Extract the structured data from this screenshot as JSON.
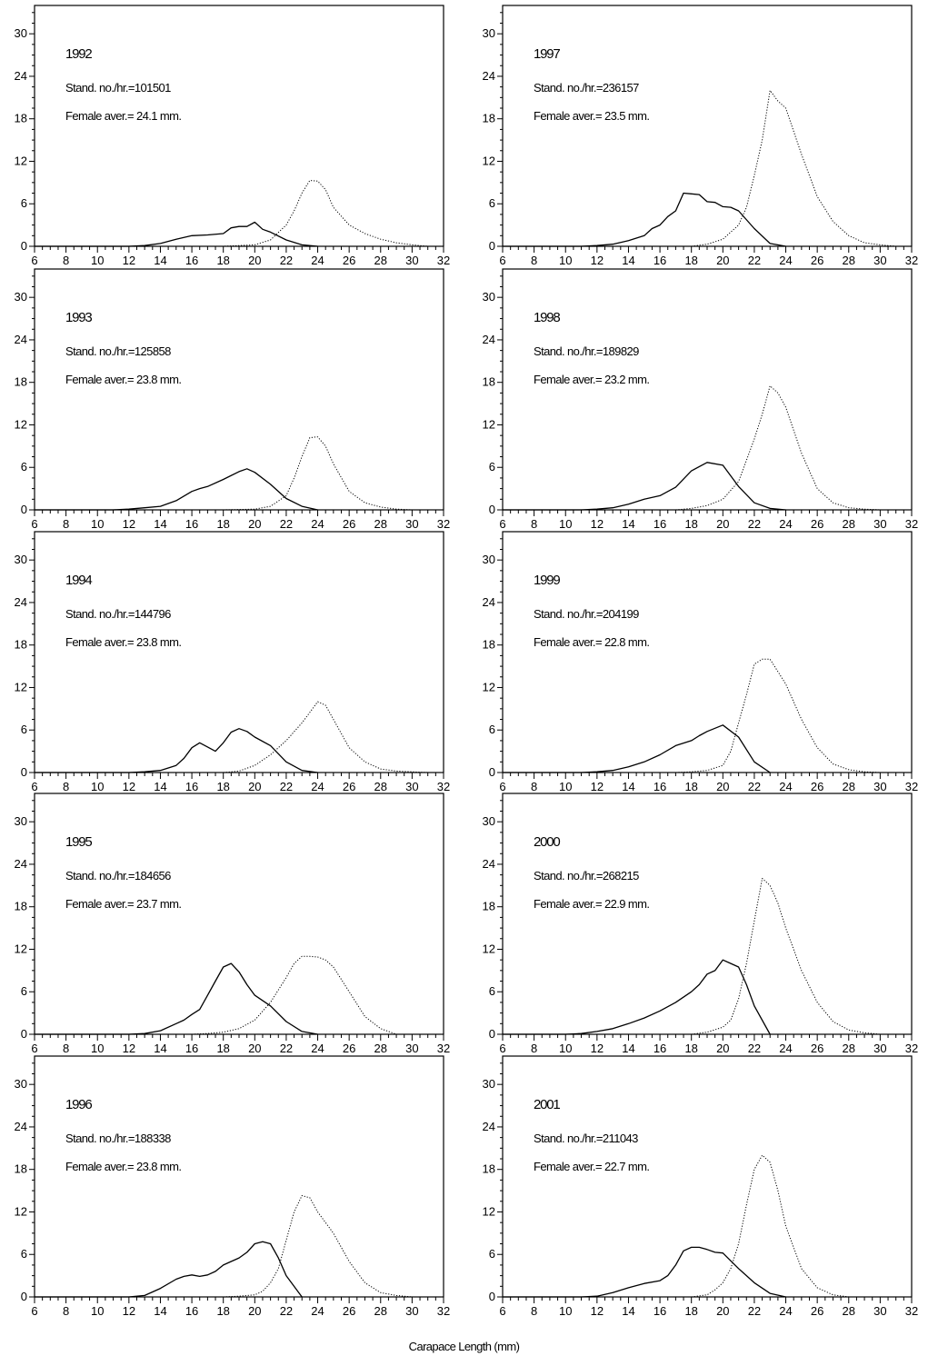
{
  "xlabel": "Carapace Length (mm)",
  "chart_data": {
    "type": "line",
    "xlim": [
      6,
      32
    ],
    "ylim": [
      0,
      34
    ],
    "x_ticks": [
      6,
      8,
      10,
      12,
      14,
      16,
      18,
      20,
      22,
      24,
      26,
      28,
      30,
      32
    ],
    "y_ticks": [
      0,
      6,
      12,
      18,
      24,
      30
    ],
    "grid": false,
    "panels": [
      {
        "year": "1992",
        "stand": "Stand. no./hr.=101501",
        "female": "Female aver.= 24.1 mm.",
        "series": [
          {
            "style": "solid",
            "x": [
              6,
              10,
              12,
              13,
              14,
              15,
              16,
              17,
              18,
              18.5,
              19,
              19.5,
              20,
              20.5,
              21,
              22,
              23,
              24
            ],
            "y": [
              0,
              0,
              0,
              0.1,
              0.4,
              1,
              1.5,
              1.6,
              1.8,
              2.6,
              2.8,
              2.8,
              3.4,
              2.4,
              2,
              0.9,
              0.2,
              0
            ]
          },
          {
            "style": "dotted",
            "x": [
              16,
              18,
              20,
              21,
              22,
              22.5,
              23,
              23.5,
              24,
              24.5,
              25,
              26,
              27,
              28,
              29,
              30,
              31
            ],
            "y": [
              0,
              0,
              0.2,
              0.9,
              3,
              5,
              7.5,
              9.3,
              9.2,
              8,
              5.5,
              3,
              1.8,
              1,
              0.5,
              0.2,
              0
            ]
          }
        ]
      },
      {
        "year": "1997",
        "stand": "Stand. no./hr.=236157",
        "female": "Female aver.= 23.5 mm.",
        "series": [
          {
            "style": "solid",
            "x": [
              6,
              11,
              12,
              13,
              14,
              15,
              15.5,
              16,
              16.5,
              17,
              17.5,
              18,
              18.5,
              19,
              19.5,
              20,
              20.5,
              21,
              22,
              23,
              24
            ],
            "y": [
              0,
              0,
              0.1,
              0.3,
              0.8,
              1.5,
              2.5,
              3,
              4.2,
              5,
              7.5,
              7.4,
              7.3,
              6.3,
              6.2,
              5.6,
              5.5,
              5,
              2.5,
              0.4,
              0
            ]
          },
          {
            "style": "dotted",
            "x": [
              18,
              19,
              20,
              21,
              21.5,
              22,
              22.5,
              23,
              23.5,
              24,
              25,
              26,
              27,
              28,
              29,
              30,
              31
            ],
            "y": [
              0,
              0.3,
              1,
              3,
              5.5,
              10,
              15,
              22,
              20.5,
              19.5,
              13,
              7,
              3.5,
              1.5,
              0.5,
              0.2,
              0
            ]
          }
        ]
      },
      {
        "year": "1993",
        "stand": "Stand. no./hr.=125858",
        "female": "Female aver.= 23.8 mm.",
        "series": [
          {
            "style": "solid",
            "x": [
              6,
              11,
              12,
              13,
              14,
              15,
              16,
              16.5,
              17,
              18,
              19,
              19.5,
              20,
              21,
              22,
              23,
              24
            ],
            "y": [
              0,
              0,
              0.1,
              0.3,
              0.5,
              1.3,
              2.6,
              3,
              3.3,
              4.3,
              5.4,
              5.8,
              5.3,
              3.6,
              1.6,
              0.5,
              0
            ]
          },
          {
            "style": "dotted",
            "x": [
              18,
              20,
              21,
              22,
              22.5,
              23,
              23.5,
              24,
              24.5,
              25,
              26,
              27,
              28,
              29,
              30
            ],
            "y": [
              0,
              0.1,
              0.5,
              2,
              4.5,
              7.5,
              10.2,
              10.3,
              9,
              6.5,
              2.6,
              1,
              0.4,
              0.1,
              0
            ]
          }
        ]
      },
      {
        "year": "1998",
        "stand": "Stand. no./hr.=189829",
        "female": "Female aver.= 23.2 mm.",
        "series": [
          {
            "style": "solid",
            "x": [
              6,
              11,
              12,
              13,
              14,
              15,
              16,
              17,
              18,
              19,
              20,
              21,
              22,
              23,
              24
            ],
            "y": [
              0,
              0,
              0.1,
              0.3,
              0.8,
              1.5,
              2,
              3.2,
              5.5,
              6.7,
              6.3,
              3.3,
              1,
              0.2,
              0
            ]
          },
          {
            "style": "dotted",
            "x": [
              17,
              18,
              19,
              20,
              21,
              22,
              22.5,
              23,
              23.5,
              24,
              25,
              26,
              27,
              28,
              29,
              30
            ],
            "y": [
              0,
              0.2,
              0.6,
              1.5,
              4,
              10,
              13.5,
              17.5,
              16.5,
              14.5,
              8,
              3,
              1,
              0.3,
              0.1,
              0
            ]
          }
        ]
      },
      {
        "year": "1994",
        "stand": "Stand. no./hr.=144796",
        "female": "Female aver.= 23.8 mm.",
        "series": [
          {
            "style": "solid",
            "x": [
              6,
              12,
              13,
              14,
              15,
              15.5,
              16,
              16.5,
              17,
              17.5,
              18,
              18.5,
              19,
              19.5,
              20,
              21,
              22,
              23,
              24
            ],
            "y": [
              0,
              0,
              0.1,
              0.3,
              1,
              2,
              3.5,
              4.2,
              3.6,
              3,
              4.2,
              5.7,
              6.2,
              5.8,
              5,
              3.8,
              1.5,
              0.3,
              0
            ]
          },
          {
            "style": "dotted",
            "x": [
              18,
              19,
              20,
              21,
              22,
              23,
              23.5,
              24,
              24.5,
              25,
              26,
              27,
              28,
              29,
              30,
              31
            ],
            "y": [
              0,
              0.2,
              1,
              2.5,
              4.5,
              7,
              8.5,
              10,
              9.5,
              7.5,
              3.5,
              1.5,
              0.5,
              0.2,
              0.1,
              0
            ]
          }
        ]
      },
      {
        "year": "1999",
        "stand": "Stand. no./hr.=204199",
        "female": "Female aver.= 22.8 mm.",
        "series": [
          {
            "style": "solid",
            "x": [
              6,
              11,
              12,
              13,
              14,
              15,
              16,
              17,
              18,
              18.5,
              19,
              20,
              21,
              22,
              23
            ],
            "y": [
              0,
              0,
              0.1,
              0.3,
              0.8,
              1.5,
              2.5,
              3.8,
              4.5,
              5.2,
              5.8,
              6.7,
              5,
              1.5,
              0
            ]
          },
          {
            "style": "dotted",
            "x": [
              17,
              18,
              19,
              20,
              20.5,
              21,
              21.5,
              22,
              22.5,
              23,
              24,
              25,
              26,
              27,
              28,
              29,
              30
            ],
            "y": [
              0,
              0.1,
              0.3,
              1,
              3,
              7,
              11,
              15.3,
              16,
              16,
              12.5,
              7.5,
              3.5,
              1.2,
              0.4,
              0.1,
              0
            ]
          }
        ]
      },
      {
        "year": "1995",
        "stand": "Stand. no./hr.=184656",
        "female": "Female aver.= 23.7 mm.",
        "series": [
          {
            "style": "solid",
            "x": [
              6,
              12,
              13,
              14,
              15,
              15.5,
              16,
              16.5,
              17,
              17.5,
              18,
              18.5,
              19,
              19.5,
              20,
              21,
              22,
              23,
              24
            ],
            "y": [
              0,
              0,
              0.1,
              0.5,
              1.5,
              2,
              2.8,
              3.5,
              5.5,
              7.5,
              9.5,
              10,
              8.8,
              7,
              5.5,
              4,
              1.8,
              0.4,
              0
            ]
          },
          {
            "style": "dotted",
            "x": [
              16,
              17,
              18,
              19,
              20,
              21,
              22,
              22.5,
              23,
              23.5,
              24,
              24.5,
              25,
              26,
              27,
              28,
              29
            ],
            "y": [
              0,
              0.1,
              0.3,
              0.8,
              2,
              4.5,
              8,
              10,
              11,
              11,
              10.9,
              10.5,
              9.5,
              6,
              2.5,
              0.8,
              0
            ]
          }
        ]
      },
      {
        "year": "2000",
        "stand": "Stand. no./hr.=268215",
        "female": "Female aver.= 22.9 mm.",
        "series": [
          {
            "style": "solid",
            "x": [
              6,
              10,
              11,
              12,
              13,
              14,
              15,
              16,
              17,
              18,
              18.5,
              19,
              19.5,
              20,
              20.5,
              21,
              21.5,
              22,
              23
            ],
            "y": [
              0,
              0,
              0.1,
              0.4,
              0.8,
              1.5,
              2.3,
              3.3,
              4.5,
              6,
              7,
              8.5,
              9,
              10.5,
              10,
              9.5,
              7,
              4,
              0
            ]
          },
          {
            "style": "dotted",
            "x": [
              18,
              19,
              20,
              20.5,
              21,
              21.5,
              22,
              22.5,
              23,
              23.5,
              24,
              25,
              26,
              27,
              28,
              29,
              30
            ],
            "y": [
              0,
              0.3,
              1,
              2,
              5,
              10,
              16,
              22,
              21,
              18.5,
              15,
              9,
              4.5,
              1.8,
              0.6,
              0.2,
              0
            ]
          }
        ]
      },
      {
        "year": "1996",
        "stand": "Stand. no./hr.=188338",
        "female": "Female aver.= 23.8 mm.",
        "series": [
          {
            "style": "solid",
            "x": [
              6,
              12,
              13,
              14,
              15,
              15.5,
              16,
              16.5,
              17,
              17.5,
              18,
              18.5,
              19,
              19.5,
              20,
              20.5,
              21,
              21.5,
              22,
              23
            ],
            "y": [
              0,
              0,
              0.2,
              1.2,
              2.5,
              2.9,
              3.1,
              2.9,
              3.1,
              3.6,
              4.5,
              5,
              5.5,
              6.3,
              7.5,
              7.8,
              7.5,
              5.5,
              3,
              0
            ]
          },
          {
            "style": "dotted",
            "x": [
              18,
              19,
              20,
              20.5,
              21,
              21.5,
              22,
              22.5,
              23,
              23.5,
              24,
              24.5,
              25,
              26,
              27,
              28,
              29,
              30
            ],
            "y": [
              0,
              0.1,
              0.3,
              0.8,
              2,
              4,
              8,
              12,
              14.3,
              14,
              12,
              10.5,
              9,
              5,
              2,
              0.6,
              0.2,
              0
            ]
          }
        ]
      },
      {
        "year": "2001",
        "stand": "Stand. no./hr.=211043",
        "female": "Female aver.= 22.7 mm.",
        "series": [
          {
            "style": "solid",
            "x": [
              6,
              11,
              12,
              13,
              14,
              15,
              16,
              16.5,
              17,
              17.5,
              18,
              18.5,
              19,
              19.5,
              20,
              21,
              22,
              23,
              24
            ],
            "y": [
              0,
              0,
              0.1,
              0.6,
              1.3,
              1.9,
              2.3,
              3,
              4.5,
              6.5,
              7,
              7,
              6.7,
              6.3,
              6.2,
              4,
              2,
              0.5,
              0
            ]
          },
          {
            "style": "dotted",
            "x": [
              18,
              19,
              19.5,
              20,
              20.5,
              21,
              21.5,
              22,
              22.5,
              23,
              23.5,
              24,
              25,
              26,
              27,
              28
            ],
            "y": [
              0,
              0.3,
              1,
              2,
              4,
              7.5,
              13,
              18,
              20,
              19,
              15,
              10,
              4,
              1.3,
              0.3,
              0
            ]
          }
        ]
      }
    ]
  }
}
